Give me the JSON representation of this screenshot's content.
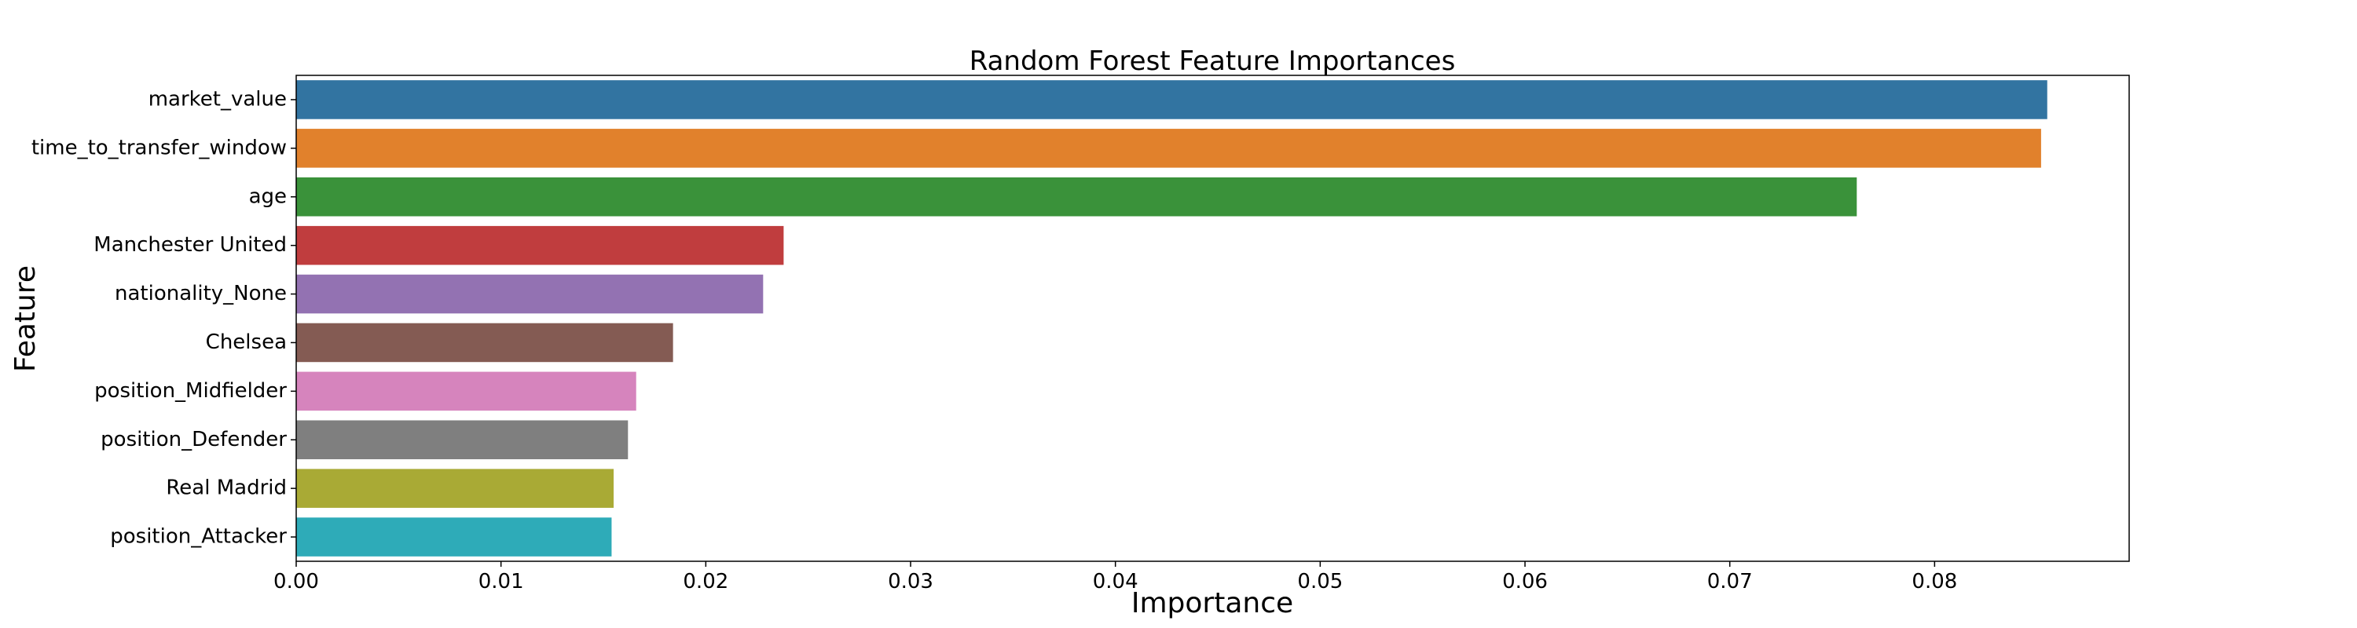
{
  "chart_data": {
    "type": "bar",
    "orientation": "horizontal",
    "title": "Random Forest Feature Importances",
    "xlabel": "Importance",
    "ylabel": "Feature",
    "xlim": [
      0,
      0.0895
    ],
    "xticks": [
      0.0,
      0.01,
      0.02,
      0.03,
      0.04,
      0.05,
      0.06,
      0.07,
      0.08
    ],
    "xtick_labels": [
      "0.00",
      "0.01",
      "0.02",
      "0.03",
      "0.04",
      "0.05",
      "0.06",
      "0.07",
      "0.08"
    ],
    "grid": false,
    "legend": "none",
    "categories": [
      "market_value",
      "time_to_transfer_window",
      "age",
      "Manchester United",
      "nationality_None",
      "Chelsea",
      "position_Midfielder",
      "position_Defender",
      "Real Madrid",
      "position_Attacker"
    ],
    "values": [
      0.0855,
      0.0852,
      0.0762,
      0.0238,
      0.0228,
      0.0184,
      0.0166,
      0.0162,
      0.0155,
      0.0154
    ],
    "colors": [
      "#3274a1",
      "#e1812c",
      "#3a923a",
      "#c03d3e",
      "#9372b2",
      "#845b53",
      "#d684bd",
      "#7f7f7f",
      "#a9aa35",
      "#2eabb8"
    ]
  }
}
